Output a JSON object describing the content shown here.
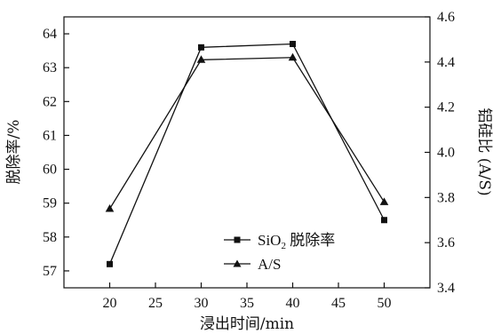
{
  "chart_data": {
    "type": "line",
    "x": [
      20,
      30,
      40,
      50
    ],
    "xlabel": "浸出时间/min",
    "xlim": [
      15,
      55
    ],
    "xticks": [
      20,
      25,
      30,
      35,
      40,
      45,
      50
    ],
    "ylabel_left": "脱除率/%",
    "ylim_left": [
      56.5,
      64.5
    ],
    "yticks_left": [
      57,
      58,
      59,
      60,
      61,
      62,
      63,
      64
    ],
    "ylabel_right": "铝硅比 (A/S)",
    "ylim_right": [
      3.4,
      4.6
    ],
    "yticks_right": [
      "3.4",
      "3.6",
      "3.8",
      "4.0",
      "4.2",
      "4.4",
      "4.6"
    ],
    "grid": false,
    "legend_position": "center-right",
    "series": [
      {
        "name": "SiO2 脱除率",
        "name_main": "SiO",
        "name_sub": "2",
        "name_rest": " 脱除率",
        "axis": "left",
        "marker": "square",
        "values": [
          57.2,
          63.6,
          63.7,
          58.5
        ]
      },
      {
        "name": "A/S",
        "axis": "right",
        "marker": "triangle",
        "values": [
          3.75,
          4.41,
          4.42,
          3.78
        ]
      }
    ]
  }
}
